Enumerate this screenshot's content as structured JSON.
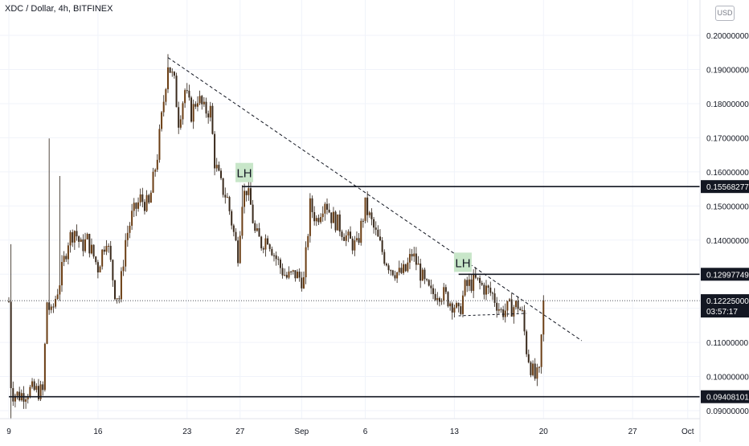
{
  "header": {
    "title": "XDC / Dollar, 4h, BITFINEX",
    "currency_badge": "USD"
  },
  "colors": {
    "up": "#6b3e14",
    "down": "#3a2a1c",
    "wick": "#2a1d12",
    "level_line": "#131722",
    "lh_bg": "#c8e6c9",
    "last_price_bg": "#131722",
    "grid": "#f0f3fa"
  },
  "chart_data": {
    "type": "candlestick",
    "x_tick_labels": [
      "9",
      "16",
      "23",
      "27",
      "Sep",
      "6",
      "13",
      "20",
      "27",
      "Oct"
    ],
    "x_tick_bars": [
      0,
      42,
      84,
      109,
      138,
      168,
      210,
      252,
      294,
      320
    ],
    "y_ticks": [
      0.09,
      0.1,
      0.11,
      0.12,
      0.13,
      0.14,
      0.15,
      0.16,
      0.17,
      0.18,
      0.19,
      0.2
    ],
    "y_tick_labels": [
      "0.09000000",
      "0.10000000",
      "0.11000000",
      "0.12000000",
      "0.13000000",
      "0.14000000",
      "0.15000000",
      "0.16000000",
      "0.17000000",
      "0.18000000",
      "0.19000000",
      "0.20000000"
    ],
    "ylim": [
      0.0855,
      0.2025
    ],
    "price_pivots": [
      [
        0,
        0.122
      ],
      [
        1,
        0.098
      ],
      [
        2,
        0.095
      ],
      [
        5,
        0.0945
      ],
      [
        10,
        0.096
      ],
      [
        16,
        0.0955
      ],
      [
        18,
        0.122
      ],
      [
        20,
        0.118
      ],
      [
        24,
        0.128
      ],
      [
        28,
        0.14
      ],
      [
        31,
        0.143
      ],
      [
        34,
        0.138
      ],
      [
        37,
        0.14
      ],
      [
        42,
        0.132
      ],
      [
        46,
        0.141
      ],
      [
        50,
        0.125
      ],
      [
        52,
        0.123
      ],
      [
        55,
        0.14
      ],
      [
        58,
        0.147
      ],
      [
        62,
        0.152
      ],
      [
        66,
        0.15
      ],
      [
        70,
        0.165
      ],
      [
        73,
        0.181
      ],
      [
        75,
        0.192
      ],
      [
        78,
        0.186
      ],
      [
        80,
        0.175
      ],
      [
        83,
        0.184
      ],
      [
        86,
        0.177
      ],
      [
        89,
        0.182
      ],
      [
        92,
        0.178
      ],
      [
        95,
        0.178
      ],
      [
        97,
        0.163
      ],
      [
        100,
        0.156
      ],
      [
        103,
        0.152
      ],
      [
        106,
        0.142
      ],
      [
        108,
        0.136
      ],
      [
        110,
        0.152
      ],
      [
        112,
        0.155
      ],
      [
        114,
        0.15
      ],
      [
        116,
        0.142
      ],
      [
        119,
        0.139
      ],
      [
        122,
        0.141
      ],
      [
        125,
        0.136
      ],
      [
        128,
        0.132
      ],
      [
        131,
        0.129
      ],
      [
        135,
        0.13
      ],
      [
        139,
        0.128
      ],
      [
        142,
        0.15
      ],
      [
        145,
        0.146
      ],
      [
        149,
        0.152
      ],
      [
        152,
        0.147
      ],
      [
        156,
        0.144
      ],
      [
        160,
        0.14
      ],
      [
        164,
        0.138
      ],
      [
        168,
        0.15
      ],
      [
        171,
        0.145
      ],
      [
        174,
        0.14
      ],
      [
        177,
        0.135
      ],
      [
        180,
        0.132
      ],
      [
        184,
        0.13
      ],
      [
        187,
        0.131
      ],
      [
        190,
        0.136
      ],
      [
        193,
        0.132
      ],
      [
        196,
        0.127
      ],
      [
        199,
        0.124
      ],
      [
        202,
        0.125
      ],
      [
        205,
        0.124
      ],
      [
        208,
        0.122
      ],
      [
        210,
        0.121
      ],
      [
        212,
        0.118
      ],
      [
        215,
        0.126
      ],
      [
        217,
        0.127
      ],
      [
        220,
        0.128
      ],
      [
        224,
        0.126
      ],
      [
        228,
        0.124
      ],
      [
        232,
        0.119
      ],
      [
        236,
        0.12
      ],
      [
        240,
        0.121
      ],
      [
        242,
        0.118
      ],
      [
        244,
        0.108
      ],
      [
        246,
        0.103
      ],
      [
        248,
        0.0995
      ],
      [
        250,
        0.1005
      ],
      [
        252,
        0.1222
      ]
    ],
    "spikes": [
      {
        "bar": 1,
        "high": 0.1388,
        "low": 0.0875
      },
      {
        "bar": 19,
        "high": 0.1698
      },
      {
        "bar": 24,
        "high": 0.1588
      },
      {
        "bar": 75,
        "high": 0.1945
      },
      {
        "bar": 110,
        "high": 0.1561
      }
    ],
    "levels": [
      {
        "value": 0.15568277,
        "label": "0.15568277",
        "from_bar": 110
      },
      {
        "value": 0.12997749,
        "label": "0.12997749",
        "from_bar": 212
      },
      {
        "value": 0.09408101,
        "label": "0.09408101",
        "from_bar": 0
      }
    ],
    "last_price": {
      "value": 0.12225,
      "label": "0.12225000",
      "countdown": "03:57:17"
    },
    "trendline": {
      "from": [
        75,
        0.1935
      ],
      "to": [
        270,
        0.1105
      ]
    },
    "dashed_support": {
      "from": [
        212,
        0.1178
      ],
      "to": [
        244,
        0.1185
      ]
    },
    "annotations": [
      {
        "text": "LH",
        "bar": 111,
        "value": 0.1598
      },
      {
        "text": "LH",
        "bar": 214,
        "value": 0.1335
      }
    ]
  }
}
